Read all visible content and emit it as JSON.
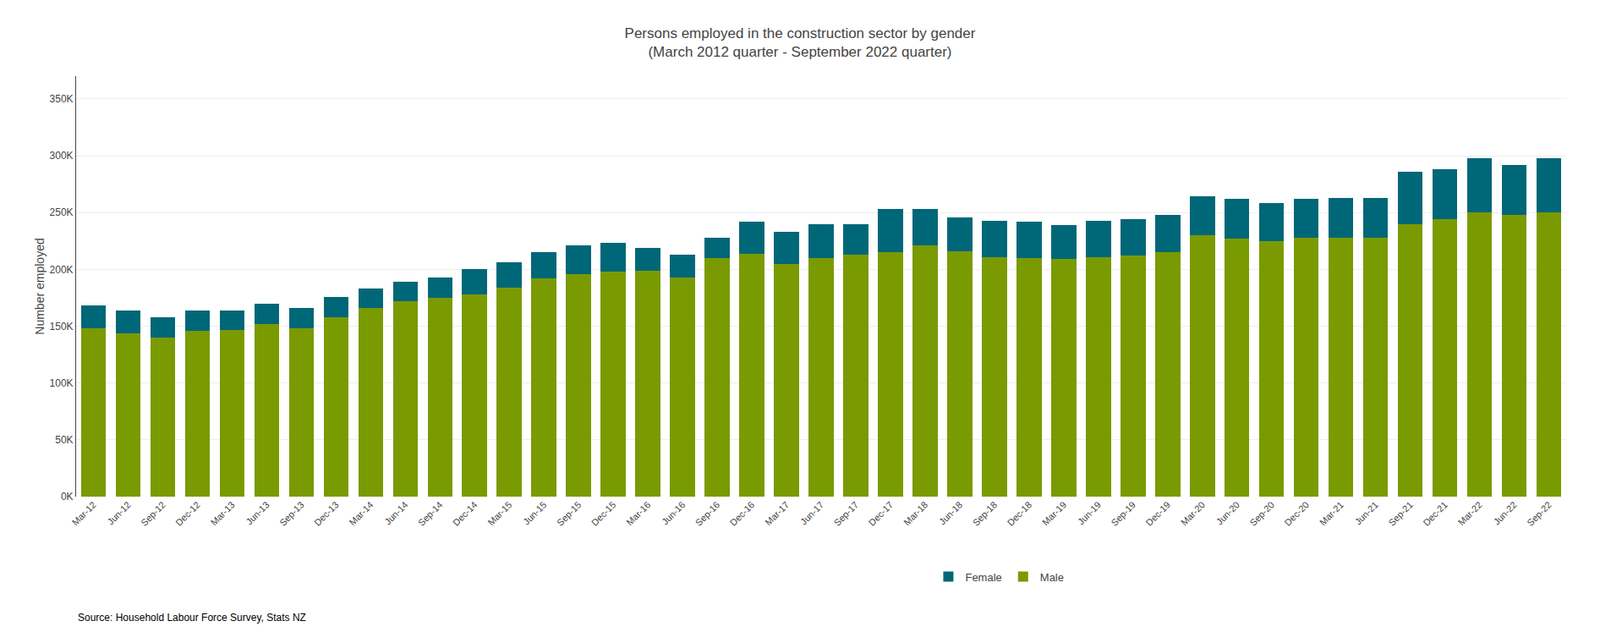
{
  "chart_data": {
    "type": "bar",
    "title": "Persons employed in the construction sector by gender\n(March 2012 quarter - September 2022 quarter)",
    "ylabel": "Number employed",
    "annotations": [
      "Source: Household Labour Force Survey, Stats NZ"
    ],
    "categories": [
      "Mar-12",
      "Jun-12",
      "Sep-12",
      "Dec-12",
      "Mar-13",
      "Jun-13",
      "Sep-13",
      "Dec-13",
      "Mar-14",
      "Jun-14",
      "Sep-14",
      "Dec-14",
      "Mar-15",
      "Jun-15",
      "Sep-15",
      "Dec-15",
      "Mar-16",
      "Jun-16",
      "Sep-16",
      "Dec-16",
      "Mar-17",
      "Jun-17",
      "Sep-17",
      "Dec-17",
      "Mar-18",
      "Jun-18",
      "Sep-18",
      "Dec-18",
      "Mar-19",
      "Jun-19",
      "Sep-19",
      "Dec-19",
      "Mar-20",
      "Jun-20",
      "Sep-20",
      "Dec-20",
      "Mar-21",
      "Jun-21",
      "Sep-21",
      "Dec-21",
      "Mar-22",
      "Jun-22",
      "Sep-22"
    ],
    "series": [
      {
        "name": "Male",
        "color": "#7a9a01",
        "values": [
          148000,
          144000,
          140000,
          146000,
          147000,
          152000,
          148000,
          158000,
          166000,
          172000,
          175000,
          178000,
          184000,
          192000,
          196000,
          198000,
          199000,
          193000,
          210000,
          214000,
          205000,
          210000,
          213000,
          215000,
          221000,
          216000,
          211000,
          210000,
          209000,
          211000,
          212000,
          215000,
          230000,
          227000,
          225000,
          228000,
          228000,
          228000,
          240000,
          244000,
          250000,
          248000,
          250000
        ]
      },
      {
        "name": "Female",
        "color": "#006778",
        "values": [
          20000,
          20000,
          18000,
          18000,
          17000,
          18000,
          18000,
          18000,
          17000,
          17000,
          18000,
          22000,
          22000,
          23000,
          25000,
          25000,
          20000,
          20000,
          18000,
          28000,
          28000,
          30000,
          27000,
          38000,
          32000,
          30000,
          32000,
          32000,
          30000,
          32000,
          32000,
          33000,
          34000,
          35000,
          33000,
          34000,
          35000,
          35000,
          46000,
          44000,
          48000,
          44000,
          48000
        ]
      }
    ],
    "stacked": true,
    "ylim": [
      0,
      370000
    ],
    "yticks": [
      {
        "value": 0,
        "label": "0K"
      },
      {
        "value": 50000,
        "label": "50K"
      },
      {
        "value": 100000,
        "label": "100K"
      },
      {
        "value": 150000,
        "label": "150K"
      },
      {
        "value": 200000,
        "label": "200K"
      },
      {
        "value": 250000,
        "label": "250K"
      },
      {
        "value": 300000,
        "label": "300K"
      },
      {
        "value": 350000,
        "label": "350K"
      }
    ],
    "grid": true,
    "legend": "bottom"
  }
}
